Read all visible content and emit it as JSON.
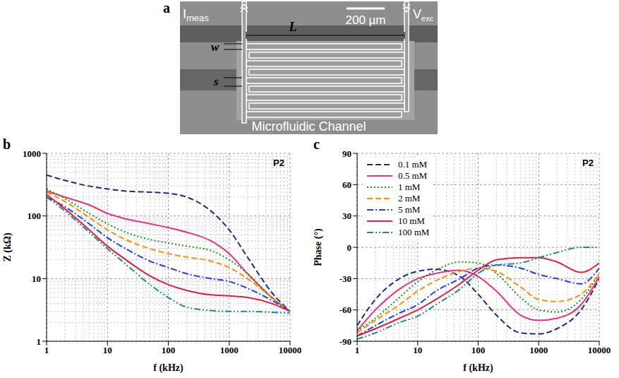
{
  "diagram": {
    "panel_label": "a",
    "current_label": {
      "text": "I",
      "subscript": "meas"
    },
    "voltage_label": {
      "text": "V",
      "subscript": "exc"
    },
    "length_label": "L",
    "scale_bar": "200 µm",
    "width_label": "w",
    "spacing_label": "s",
    "channel_label": "Microfluidic Channel"
  },
  "chart_data": [
    {
      "type": "line",
      "panel_label": "b",
      "annotation": "P2",
      "x_label": "f (kHz)",
      "y_label": "Z (kΩ)",
      "log": true,
      "grid": true,
      "xlim": [
        1,
        10000
      ],
      "xticks": [
        1,
        10,
        100,
        1000,
        10000
      ],
      "ylim": [
        1,
        1000
      ],
      "yticks": [
        1,
        10,
        100,
        1000
      ],
      "x": [
        1,
        2,
        5,
        10,
        20,
        50,
        100,
        200,
        500,
        1000,
        2000,
        5000,
        10000
      ],
      "series": [
        {
          "name": "0.1 mM",
          "color": "#1c2a80",
          "line_style": "dashed",
          "values": [
            450,
            370,
            300,
            270,
            250,
            240,
            230,
            200,
            120,
            60,
            22,
            6,
            3
          ]
        },
        {
          "name": "0.5 mM",
          "color": "#e8307f",
          "line_style": "solid",
          "values": [
            250,
            200,
            150,
            110,
            90,
            75,
            65,
            55,
            40,
            25,
            12,
            5,
            3
          ]
        },
        {
          "name": "1 mM",
          "color": "#1e8c1e",
          "line_style": "dotted",
          "values": [
            270,
            190,
            110,
            75,
            55,
            42,
            37,
            33,
            28,
            20,
            12,
            5,
            3
          ]
        },
        {
          "name": "2 mM",
          "color": "#ff8c00",
          "line_style": "dashed",
          "values": [
            240,
            170,
            95,
            60,
            42,
            30,
            25,
            22,
            19,
            15,
            10,
            5,
            3
          ]
        },
        {
          "name": "5 mM",
          "color": "#1e3cff",
          "line_style": "dashdot",
          "values": [
            200,
            140,
            75,
            45,
            30,
            19,
            15,
            12,
            10,
            9,
            7,
            4.5,
            3
          ]
        },
        {
          "name": "10 mM",
          "color": "#e0203a",
          "line_style": "solid",
          "values": [
            220,
            130,
            60,
            33,
            20,
            11,
            8,
            6.5,
            5.5,
            5.3,
            5,
            4,
            3
          ]
        },
        {
          "name": "100 mM",
          "color": "#1a8a8a",
          "line_style": "dashdotdot",
          "values": [
            200,
            120,
            55,
            30,
            17,
            8,
            5,
            3.5,
            3.1,
            3,
            3,
            2.9,
            2.8
          ]
        }
      ]
    },
    {
      "type": "line",
      "panel_label": "c",
      "annotation": "P2",
      "x_label": "f (kHz)",
      "y_label": "Phase (°)",
      "log": "x",
      "grid": true,
      "legend": "upper left",
      "xlim": [
        1,
        10000
      ],
      "xticks": [
        1,
        10,
        100,
        1000,
        10000
      ],
      "ylim": [
        -90,
        90
      ],
      "yticks": [
        -90,
        -60,
        -30,
        0,
        30,
        60,
        90
      ],
      "x": [
        1,
        2,
        5,
        10,
        20,
        50,
        100,
        200,
        500,
        1000,
        2000,
        5000,
        10000
      ],
      "series": [
        {
          "name": "0.1 mM",
          "color": "#1c2a80",
          "line_style": "dashed",
          "values": [
            -75,
            -50,
            -30,
            -23,
            -21,
            -28,
            -45,
            -65,
            -82,
            -83,
            -78,
            -60,
            -30
          ]
        },
        {
          "name": "0.5 mM",
          "color": "#e8307f",
          "line_style": "solid",
          "values": [
            -80,
            -60,
            -40,
            -30,
            -25,
            -22,
            -28,
            -42,
            -65,
            -70,
            -68,
            -55,
            -28
          ]
        },
        {
          "name": "1 mM",
          "color": "#1e8c1e",
          "line_style": "dotted",
          "values": [
            -80,
            -68,
            -48,
            -33,
            -22,
            -14,
            -15,
            -25,
            -48,
            -60,
            -62,
            -50,
            -25
          ]
        },
        {
          "name": "2 mM",
          "color": "#ff8c00",
          "line_style": "dashed",
          "values": [
            -82,
            -70,
            -55,
            -42,
            -32,
            -23,
            -20,
            -23,
            -38,
            -50,
            -52,
            -45,
            -25
          ]
        },
        {
          "name": "5 mM",
          "color": "#1e3cff",
          "line_style": "dashdot",
          "values": [
            -85,
            -75,
            -63,
            -55,
            -42,
            -30,
            -20,
            -17,
            -20,
            -26,
            -30,
            -35,
            -20
          ]
        },
        {
          "name": "10 mM",
          "color": "#e0203a",
          "line_style": "solid",
          "values": [
            -85,
            -78,
            -68,
            -60,
            -50,
            -35,
            -22,
            -12,
            -10,
            -10,
            -14,
            -24,
            -15
          ]
        },
        {
          "name": "100 mM",
          "color": "#1a8a8a",
          "line_style": "dashdotdot",
          "values": [
            -88,
            -82,
            -72,
            -66,
            -55,
            -40,
            -25,
            -17,
            -15,
            -10,
            -5,
            0,
            0
          ]
        }
      ]
    }
  ]
}
